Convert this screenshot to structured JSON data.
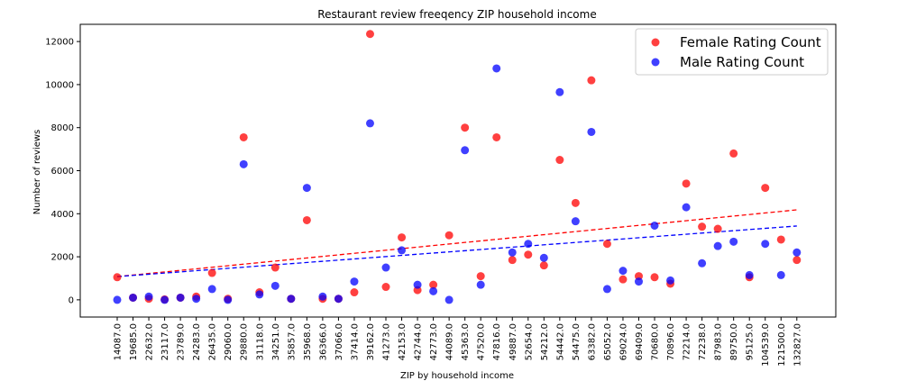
{
  "chart_data": {
    "type": "scatter",
    "title": "Restaurant review freeqency ZIP household income",
    "xlabel": "ZIP by household income",
    "ylabel": "Number of reviews",
    "ylim": [
      -800,
      12800
    ],
    "yticks": [
      0,
      2000,
      4000,
      6000,
      8000,
      10000,
      12000
    ],
    "grid": false,
    "legend_position": "top-right",
    "categories": [
      "14087.0",
      "19685.0",
      "22632.0",
      "23117.0",
      "23789.0",
      "24283.0",
      "26435.0",
      "29060.0",
      "29880.0",
      "31118.0",
      "34251.0",
      "35857.0",
      "35968.0",
      "36366.0",
      "37066.0",
      "37414.0",
      "39162.0",
      "41273.0",
      "42153.0",
      "42744.0",
      "42773.0",
      "44089.0",
      "45363.0",
      "47520.0",
      "47816.0",
      "49887.0",
      "52654.0",
      "54212.0",
      "54442.0",
      "54475.0",
      "63382.0",
      "65052.0",
      "69024.0",
      "69409.0",
      "70680.0",
      "70896.0",
      "72214.0",
      "72238.0",
      "87983.0",
      "89750.0",
      "95125.0",
      "104539.0",
      "121500.0",
      "132827.0"
    ],
    "series": [
      {
        "name": "Female Rating Count",
        "color": "#ff0000",
        "values": [
          1050,
          100,
          50,
          20,
          100,
          150,
          1250,
          50,
          7550,
          350,
          1500,
          50,
          3700,
          50,
          50,
          350,
          12350,
          600,
          2900,
          450,
          700,
          3000,
          8000,
          1100,
          7550,
          1850,
          2100,
          1600,
          6500,
          4500,
          10200,
          2600,
          950,
          1100,
          1050,
          750,
          5400,
          3400,
          3300,
          6800,
          1050,
          5200,
          2800,
          1850
        ]
      },
      {
        "name": "Male Rating Count",
        "color": "#0000ff",
        "values": [
          0,
          100,
          150,
          0,
          100,
          50,
          500,
          0,
          6300,
          250,
          650,
          50,
          5200,
          150,
          50,
          850,
          8200,
          1500,
          2300,
          700,
          400,
          0,
          6950,
          700,
          10750,
          2200,
          2600,
          1950,
          9650,
          3650,
          7800,
          500,
          1350,
          850,
          3450,
          900,
          4300,
          1700,
          2500,
          2700,
          1150,
          2600,
          1150,
          2200
        ]
      }
    ],
    "trendlines": [
      {
        "series": "Female Rating Count",
        "color": "#ff0000",
        "start": 1080,
        "end": 4180
      },
      {
        "series": "Male Rating Count",
        "color": "#0000ff",
        "start": 1080,
        "end": 3430
      }
    ]
  }
}
